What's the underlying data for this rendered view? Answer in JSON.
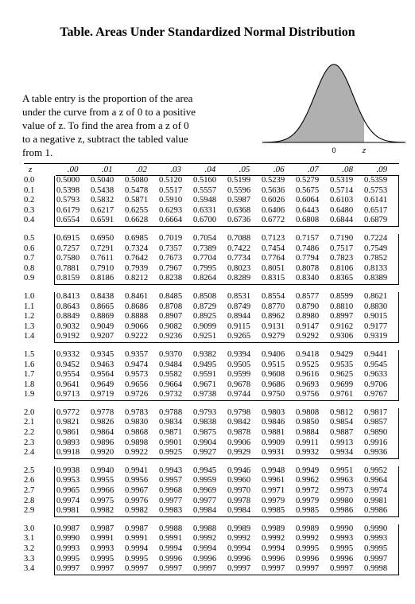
{
  "title": "Table.   Areas Under Standardized Normal Distribution",
  "description": "A table entry is the proportion of the area under the curve from a z of 0 to a positive value of z.  To find the area from a z of 0 to a negative z, subtract the tabled value from 1.",
  "curve": {
    "zero_label": "0",
    "z_label": "z",
    "shade_color": "#b0b0b0"
  },
  "table": {
    "headers": [
      "z",
      ".00",
      ".01",
      ".02",
      ".03",
      ".04",
      ".05",
      ".06",
      ".07",
      ".08",
      ".09"
    ],
    "groups": [
      [
        {
          "z": "0.0",
          "v": [
            "0.5000",
            "0.5040",
            "0.5080",
            "0.5120",
            "0.5160",
            "0.5199",
            "0.5239",
            "0.5279",
            "0.5319",
            "0.5359"
          ]
        },
        {
          "z": "0.1",
          "v": [
            "0.5398",
            "0.5438",
            "0.5478",
            "0.5517",
            "0.5557",
            "0.5596",
            "0.5636",
            "0.5675",
            "0.5714",
            "0.5753"
          ]
        },
        {
          "z": "0.2",
          "v": [
            "0.5793",
            "0.5832",
            "0.5871",
            "0.5910",
            "0.5948",
            "0.5987",
            "0.6026",
            "0.6064",
            "0.6103",
            "0.6141"
          ]
        },
        {
          "z": "0.3",
          "v": [
            "0.6179",
            "0.6217",
            "0.6255",
            "0.6293",
            "0.6331",
            "0.6368",
            "0.6406",
            "0.6443",
            "0.6480",
            "0.6517"
          ]
        },
        {
          "z": "0.4",
          "v": [
            "0.6554",
            "0.6591",
            "0.6628",
            "0.6664",
            "0.6700",
            "0.6736",
            "0.6772",
            "0.6808",
            "0.6844",
            "0.6879"
          ]
        }
      ],
      [
        {
          "z": "0.5",
          "v": [
            "0.6915",
            "0.6950",
            "0.6985",
            "0.7019",
            "0.7054",
            "0.7088",
            "0.7123",
            "0.7157",
            "0.7190",
            "0.7224"
          ]
        },
        {
          "z": "0.6",
          "v": [
            "0.7257",
            "0.7291",
            "0.7324",
            "0.7357",
            "0.7389",
            "0.7422",
            "0.7454",
            "0.7486",
            "0.7517",
            "0.7549"
          ]
        },
        {
          "z": "0.7",
          "v": [
            "0.7580",
            "0.7611",
            "0.7642",
            "0.7673",
            "0.7704",
            "0.7734",
            "0.7764",
            "0.7794",
            "0.7823",
            "0.7852"
          ]
        },
        {
          "z": "0.8",
          "v": [
            "0.7881",
            "0.7910",
            "0.7939",
            "0.7967",
            "0.7995",
            "0.8023",
            "0.8051",
            "0.8078",
            "0.8106",
            "0.8133"
          ]
        },
        {
          "z": "0.9",
          "v": [
            "0.8159",
            "0.8186",
            "0.8212",
            "0.8238",
            "0.8264",
            "0.8289",
            "0.8315",
            "0.8340",
            "0.8365",
            "0.8389"
          ]
        }
      ],
      [
        {
          "z": "1.0",
          "v": [
            "0.8413",
            "0.8438",
            "0.8461",
            "0.8485",
            "0.8508",
            "0.8531",
            "0.8554",
            "0.8577",
            "0.8599",
            "0.8621"
          ]
        },
        {
          "z": "1.1",
          "v": [
            "0.8643",
            "0.8665",
            "0.8686",
            "0.8708",
            "0.8729",
            "0.8749",
            "0.8770",
            "0.8790",
            "0.8810",
            "0.8830"
          ]
        },
        {
          "z": "1.2",
          "v": [
            "0.8849",
            "0.8869",
            "0.8888",
            "0.8907",
            "0.8925",
            "0.8944",
            "0.8962",
            "0.8980",
            "0.8997",
            "0.9015"
          ]
        },
        {
          "z": "1.3",
          "v": [
            "0.9032",
            "0.9049",
            "0.9066",
            "0.9082",
            "0.9099",
            "0.9115",
            "0.9131",
            "0.9147",
            "0.9162",
            "0.9177"
          ]
        },
        {
          "z": "1.4",
          "v": [
            "0.9192",
            "0.9207",
            "0.9222",
            "0.9236",
            "0.9251",
            "0.9265",
            "0.9279",
            "0.9292",
            "0.9306",
            "0.9319"
          ]
        }
      ],
      [
        {
          "z": "1.5",
          "v": [
            "0.9332",
            "0.9345",
            "0.9357",
            "0.9370",
            "0.9382",
            "0.9394",
            "0.9406",
            "0.9418",
            "0.9429",
            "0.9441"
          ]
        },
        {
          "z": "1.6",
          "v": [
            "0.9452",
            "0.9463",
            "0.9474",
            "0.9484",
            "0.9495",
            "0.9505",
            "0.9515",
            "0.9525",
            "0.9535",
            "0.9545"
          ]
        },
        {
          "z": "1.7",
          "v": [
            "0.9554",
            "0.9564",
            "0.9573",
            "0.9582",
            "0.9591",
            "0.9599",
            "0.9608",
            "0.9616",
            "0.9625",
            "0.9633"
          ]
        },
        {
          "z": "1.8",
          "v": [
            "0.9641",
            "0.9649",
            "0.9656",
            "0.9664",
            "0.9671",
            "0.9678",
            "0.9686",
            "0.9693",
            "0.9699",
            "0.9706"
          ]
        },
        {
          "z": "1.9",
          "v": [
            "0.9713",
            "0.9719",
            "0.9726",
            "0.9732",
            "0.9738",
            "0.9744",
            "0.9750",
            "0.9756",
            "0.9761",
            "0.9767"
          ]
        }
      ],
      [
        {
          "z": "2.0",
          "v": [
            "0.9772",
            "0.9778",
            "0.9783",
            "0.9788",
            "0.9793",
            "0.9798",
            "0.9803",
            "0.9808",
            "0.9812",
            "0.9817"
          ]
        },
        {
          "z": "2.1",
          "v": [
            "0.9821",
            "0.9826",
            "0.9830",
            "0.9834",
            "0.9838",
            "0.9842",
            "0.9846",
            "0.9850",
            "0.9854",
            "0.9857"
          ]
        },
        {
          "z": "2.2",
          "v": [
            "0.9861",
            "0.9864",
            "0.9868",
            "0.9871",
            "0.9875",
            "0.9878",
            "0.9881",
            "0.9884",
            "0.9887",
            "0.9890"
          ]
        },
        {
          "z": "2.3",
          "v": [
            "0.9893",
            "0.9896",
            "0.9898",
            "0.9901",
            "0.9904",
            "0.9906",
            "0.9909",
            "0.9911",
            "0.9913",
            "0.9916"
          ]
        },
        {
          "z": "2.4",
          "v": [
            "0.9918",
            "0.9920",
            "0.9922",
            "0.9925",
            "0.9927",
            "0.9929",
            "0.9931",
            "0.9932",
            "0.9934",
            "0.9936"
          ]
        }
      ],
      [
        {
          "z": "2.5",
          "v": [
            "0.9938",
            "0.9940",
            "0.9941",
            "0.9943",
            "0.9945",
            "0.9946",
            "0.9948",
            "0.9949",
            "0.9951",
            "0.9952"
          ]
        },
        {
          "z": "2.6",
          "v": [
            "0.9953",
            "0.9955",
            "0.9956",
            "0.9957",
            "0.9959",
            "0.9960",
            "0.9961",
            "0.9962",
            "0.9963",
            "0.9964"
          ]
        },
        {
          "z": "2.7",
          "v": [
            "0.9965",
            "0.9966",
            "0.9967",
            "0.9968",
            "0.9969",
            "0.9970",
            "0.9971",
            "0.9972",
            "0.9973",
            "0.9974"
          ]
        },
        {
          "z": "2.8",
          "v": [
            "0.9974",
            "0.9975",
            "0.9976",
            "0.9977",
            "0.9977",
            "0.9978",
            "0.9979",
            "0.9979",
            "0.9980",
            "0.9981"
          ]
        },
        {
          "z": "2.9",
          "v": [
            "0.9981",
            "0.9982",
            "0.9982",
            "0.9983",
            "0.9984",
            "0.9984",
            "0.9985",
            "0.9985",
            "0.9986",
            "0.9986"
          ]
        }
      ],
      [
        {
          "z": "3.0",
          "v": [
            "0.9987",
            "0.9987",
            "0.9987",
            "0.9988",
            "0.9988",
            "0.9989",
            "0.9989",
            "0.9989",
            "0.9990",
            "0.9990"
          ]
        },
        {
          "z": "3.1",
          "v": [
            "0.9990",
            "0.9991",
            "0.9991",
            "0.9991",
            "0.9992",
            "0.9992",
            "0.9992",
            "0.9992",
            "0.9993",
            "0.9993"
          ]
        },
        {
          "z": "3.2",
          "v": [
            "0.9993",
            "0.9993",
            "0.9994",
            "0.9994",
            "0.9994",
            "0.9994",
            "0.9994",
            "0.9995",
            "0.9995",
            "0.9995"
          ]
        },
        {
          "z": "3.3",
          "v": [
            "0.9995",
            "0.9995",
            "0.9995",
            "0.9996",
            "0.9996",
            "0.9996",
            "0.9996",
            "0.9996",
            "0.9996",
            "0.9997"
          ]
        },
        {
          "z": "3.4",
          "v": [
            "0.9997",
            "0.9997",
            "0.9997",
            "0.9997",
            "0.9997",
            "0.9997",
            "0.9997",
            "0.9997",
            "0.9997",
            "0.9998"
          ]
        }
      ]
    ]
  }
}
